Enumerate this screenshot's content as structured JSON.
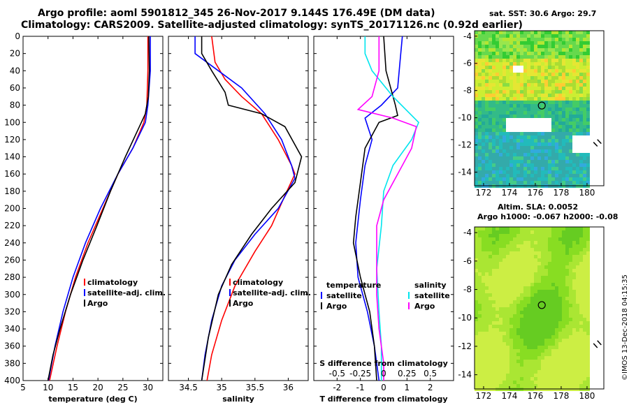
{
  "header": {
    "line1": "Argo profile: aoml 5901812_345 26-Nov-2017 9.144S 176.49E (DM data)",
    "line2": "Climatology: CARS2009. Satellite-adjusted climatology: synTS_20171126.nc (0.92d earlier)"
  },
  "colors": {
    "climatology": "#ff0000",
    "satellite": "#0000ff",
    "argo": "#000000",
    "s_satellite": "#00e5ee",
    "s_argo": "#ff00ff"
  },
  "watermark": "©IMOS 13-Dec-2018 04:15:35",
  "chart_data": [
    {
      "type": "line",
      "id": "temperature",
      "xlabel": "temperature (deg C)",
      "ylabel": "",
      "xlim": [
        5,
        33
      ],
      "ylim": [
        400,
        0
      ],
      "xticks": [
        5,
        10,
        15,
        20,
        25,
        30
      ],
      "yticks": [
        0,
        20,
        40,
        60,
        80,
        100,
        120,
        140,
        160,
        180,
        200,
        220,
        240,
        260,
        280,
        300,
        320,
        340,
        360,
        380,
        400
      ],
      "legend": [
        "climatology",
        "satellite-adj. clim.",
        "Argo"
      ],
      "series": [
        {
          "name": "climatology",
          "color": "#ff0000",
          "points": [
            [
              30,
              0
            ],
            [
              30,
              40
            ],
            [
              29.8,
              80
            ],
            [
              29.2,
              100
            ],
            [
              27,
              130
            ],
            [
              24,
              160
            ],
            [
              21,
              200
            ],
            [
              18,
              240
            ],
            [
              15.5,
              280
            ],
            [
              13.5,
              320
            ],
            [
              11.8,
              360
            ],
            [
              10.3,
              400
            ]
          ]
        },
        {
          "name": "satellite-adj. clim.",
          "color": "#0000ff",
          "points": [
            [
              30.5,
              0
            ],
            [
              30.5,
              40
            ],
            [
              30,
              80
            ],
            [
              29.5,
              100
            ],
            [
              27,
              130
            ],
            [
              24,
              160
            ],
            [
              20.5,
              200
            ],
            [
              17.5,
              240
            ],
            [
              15,
              280
            ],
            [
              13,
              320
            ],
            [
              11.4,
              360
            ],
            [
              10.1,
              400
            ]
          ]
        },
        {
          "name": "Argo",
          "color": "#000000",
          "points": [
            [
              30.2,
              0
            ],
            [
              30.3,
              40
            ],
            [
              30.1,
              70
            ],
            [
              29.5,
              90
            ],
            [
              28.3,
              105
            ],
            [
              25.5,
              140
            ],
            [
              22.5,
              180
            ],
            [
              19.8,
              220
            ],
            [
              17,
              260
            ],
            [
              14.5,
              300
            ],
            [
              12.4,
              340
            ],
            [
              11,
              370
            ],
            [
              10,
              400
            ]
          ]
        }
      ]
    },
    {
      "type": "line",
      "id": "salinity",
      "xlabel": "salinity",
      "ylabel": "",
      "xlim": [
        34.2,
        36.3
      ],
      "ylim": [
        400,
        0
      ],
      "xticks": [
        34.5,
        35,
        35.5,
        36
      ],
      "legend": [
        "climatology",
        "satellite-adj. clim.",
        "Argo"
      ],
      "series": [
        {
          "name": "climatology",
          "color": "#ff0000",
          "points": [
            [
              34.85,
              0
            ],
            [
              34.9,
              30
            ],
            [
              35.05,
              50
            ],
            [
              35.3,
              70
            ],
            [
              35.6,
              90
            ],
            [
              35.85,
              120
            ],
            [
              36.05,
              150
            ],
            [
              36.1,
              160
            ],
            [
              35.95,
              185
            ],
            [
              35.75,
              220
            ],
            [
              35.5,
              250
            ],
            [
              35.2,
              290
            ],
            [
              35,
              330
            ],
            [
              34.85,
              370
            ],
            [
              34.78,
              400
            ]
          ]
        },
        {
          "name": "satellite-adj. clim.",
          "color": "#0000ff",
          "points": [
            [
              34.6,
              0
            ],
            [
              34.6,
              20
            ],
            [
              34.95,
              40
            ],
            [
              35.3,
              60
            ],
            [
              35.65,
              90
            ],
            [
              35.9,
              120
            ],
            [
              36.05,
              150
            ],
            [
              36.1,
              165
            ],
            [
              35.85,
              200
            ],
            [
              35.5,
              230
            ],
            [
              35.2,
              260
            ],
            [
              35,
              290
            ],
            [
              34.85,
              330
            ],
            [
              34.75,
              370
            ],
            [
              34.7,
              400
            ]
          ]
        },
        {
          "name": "Argo",
          "color": "#000000",
          "points": [
            [
              34.7,
              0
            ],
            [
              34.7,
              20
            ],
            [
              34.85,
              40
            ],
            [
              35.05,
              65
            ],
            [
              35.1,
              80
            ],
            [
              35.6,
              90
            ],
            [
              35.95,
              105
            ],
            [
              36.2,
              140
            ],
            [
              36.1,
              170
            ],
            [
              35.75,
              200
            ],
            [
              35.45,
              230
            ],
            [
              35.15,
              265
            ],
            [
              34.95,
              300
            ],
            [
              34.8,
              350
            ],
            [
              34.7,
              400
            ]
          ]
        }
      ]
    },
    {
      "type": "line",
      "id": "difference",
      "xlabel": "T difference from climatology",
      "ylabel": "",
      "top_xlabel": "S difference from climatology",
      "xlim": [
        -3,
        3
      ],
      "ylim": [
        400,
        0
      ],
      "xticks": [
        -2,
        -1,
        0,
        1,
        2
      ],
      "top_xticks": [
        -0.5,
        -0.25,
        0,
        0.25,
        0.5
      ],
      "top_xlim": [
        -0.75,
        0.75
      ],
      "legend_left_title": "temperature",
      "legend_right_title": "salinity",
      "legend_left": [
        "satellite",
        "Argo"
      ],
      "legend_right": [
        "satellite",
        "Argo"
      ],
      "series": [
        {
          "name": "T satellite",
          "color": "#0000ff",
          "points": [
            [
              0.8,
              0
            ],
            [
              0.7,
              30
            ],
            [
              0.6,
              60
            ],
            [
              -0.1,
              80
            ],
            [
              -0.8,
              95
            ],
            [
              -0.5,
              120
            ],
            [
              -0.8,
              150
            ],
            [
              -1,
              190
            ],
            [
              -1.2,
              240
            ],
            [
              -1.1,
              280
            ],
            [
              -0.7,
              320
            ],
            [
              -0.4,
              360
            ],
            [
              -0.2,
              400
            ]
          ]
        },
        {
          "name": "T Argo",
          "color": "#000000",
          "points": [
            [
              0,
              0
            ],
            [
              0.1,
              40
            ],
            [
              0.5,
              80
            ],
            [
              0.6,
              92
            ],
            [
              -0.2,
              100
            ],
            [
              -0.8,
              130
            ],
            [
              -1,
              170
            ],
            [
              -1.2,
              210
            ],
            [
              -1.3,
              240
            ],
            [
              -1,
              280
            ],
            [
              -0.6,
              320
            ],
            [
              -0.4,
              360
            ],
            [
              -0.3,
              400
            ]
          ]
        },
        {
          "name": "S satellite",
          "color": "#00e5ee",
          "points": [
            [
              -0.8,
              0
            ],
            [
              -0.8,
              20
            ],
            [
              -0.5,
              40
            ],
            [
              0.4,
              70
            ],
            [
              1.5,
              100
            ],
            [
              1.2,
              120
            ],
            [
              0.4,
              150
            ],
            [
              0,
              180
            ],
            [
              -0.1,
              220
            ],
            [
              -0.3,
              270
            ],
            [
              -0.2,
              320
            ],
            [
              -0.1,
              360
            ],
            [
              -0.1,
              400
            ]
          ]
        },
        {
          "name": "S Argo",
          "color": "#ff00ff",
          "points": [
            [
              -0.2,
              0
            ],
            [
              -0.2,
              40
            ],
            [
              -0.5,
              70
            ],
            [
              -1.1,
              85
            ],
            [
              0.4,
              95
            ],
            [
              1.4,
              105
            ],
            [
              1.2,
              130
            ],
            [
              0.6,
              160
            ],
            [
              0,
              190
            ],
            [
              -0.3,
              220
            ],
            [
              -0.3,
              260
            ],
            [
              -0.3,
              300
            ],
            [
              -0.2,
              340
            ],
            [
              0,
              380
            ],
            [
              0,
              400
            ]
          ]
        }
      ]
    },
    {
      "type": "heatmap",
      "id": "sst_map",
      "title": "sat. SST: 30.6 Argo: 29.7",
      "xlim": [
        171.3,
        181.3
      ],
      "ylim": [
        -15,
        -3.6
      ],
      "xticks": [
        172,
        174,
        176,
        178,
        180
      ],
      "yticks": [
        -4,
        -6,
        -8,
        -10,
        -12,
        -14
      ],
      "marker": [
        176.5,
        -9.1
      ]
    },
    {
      "type": "heatmap",
      "id": "sla_map",
      "title_line1": "Altim. SLA: 0.0052",
      "title_line2": "Argo h1000: -0.067 h2000: -0.08",
      "xlim": [
        171.3,
        181.3
      ],
      "ylim": [
        -15,
        -3.6
      ],
      "xticks": [
        172,
        174,
        176,
        178,
        180
      ],
      "yticks": [
        -4,
        -6,
        -8,
        -10,
        -12,
        -14
      ],
      "marker": [
        176.5,
        -9.1
      ]
    }
  ]
}
